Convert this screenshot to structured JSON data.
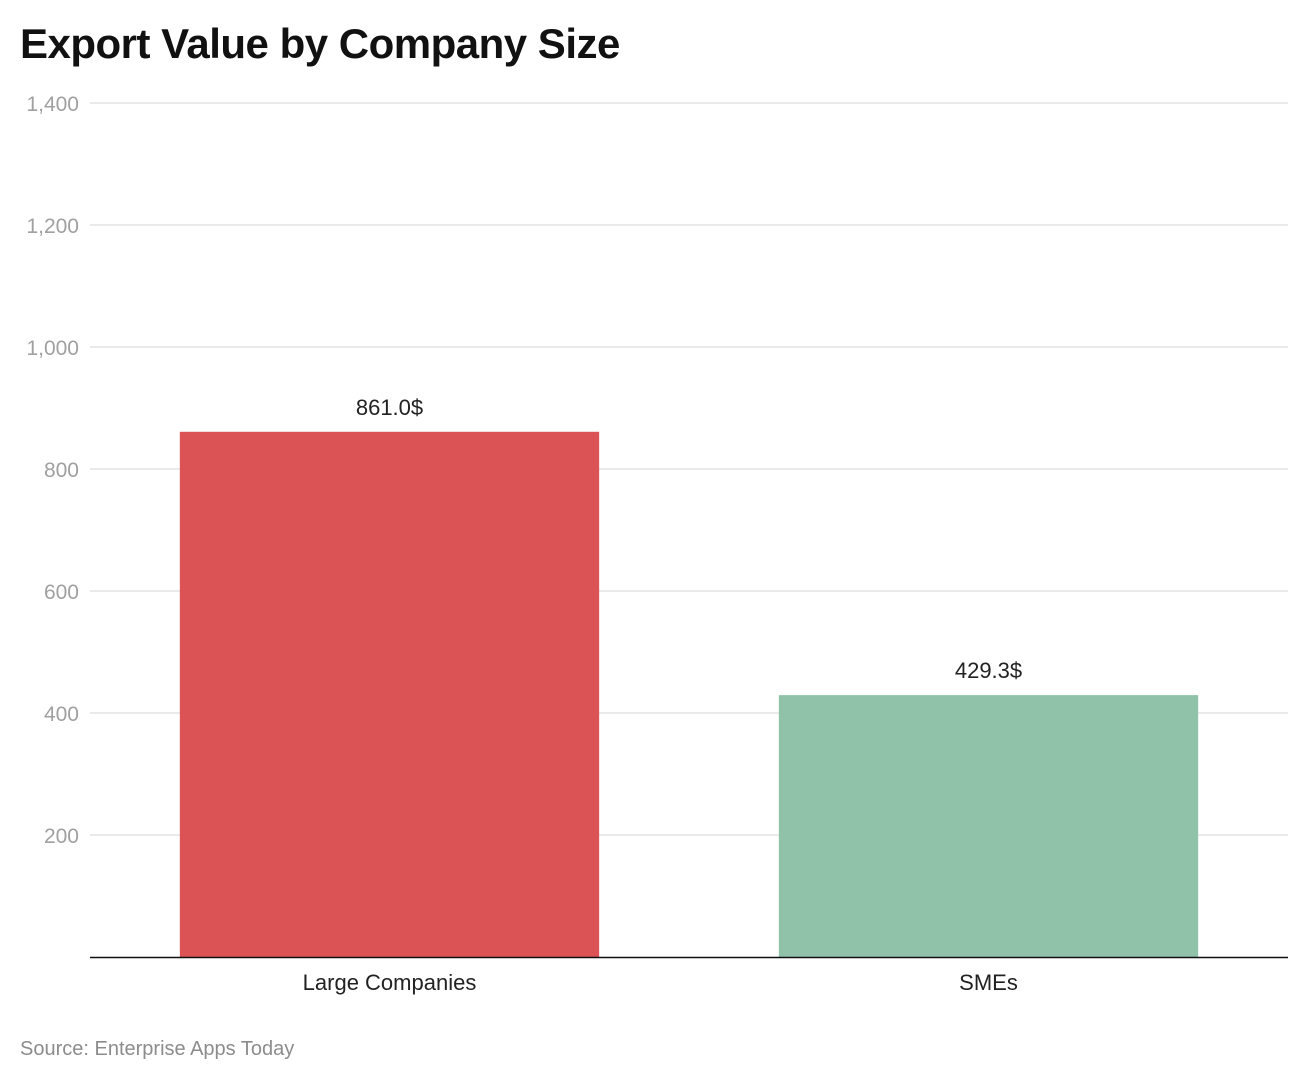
{
  "chart_data": {
    "type": "bar",
    "title": "Export Value by Company Size",
    "categories": [
      "Large Companies",
      "SMEs"
    ],
    "values": [
      861.0,
      429.3
    ],
    "value_labels": [
      "861.0$",
      "429.3$"
    ],
    "colors": [
      "#dc5356",
      "#8fc2a8"
    ],
    "xlabel": "",
    "ylabel": "",
    "ylim": [
      0,
      1400
    ],
    "yticks": [
      200,
      400,
      600,
      800,
      1000,
      1200,
      1400
    ],
    "ytick_labels": [
      "200",
      "400",
      "600",
      "800",
      "1,000",
      "1,200",
      "1,400"
    ],
    "grid": true,
    "legend": "none",
    "gridline_color": "#e3e3e3",
    "tick_label_color": "#a0a0a0"
  },
  "footer": {
    "source": "Source: Enterprise Apps Today"
  }
}
